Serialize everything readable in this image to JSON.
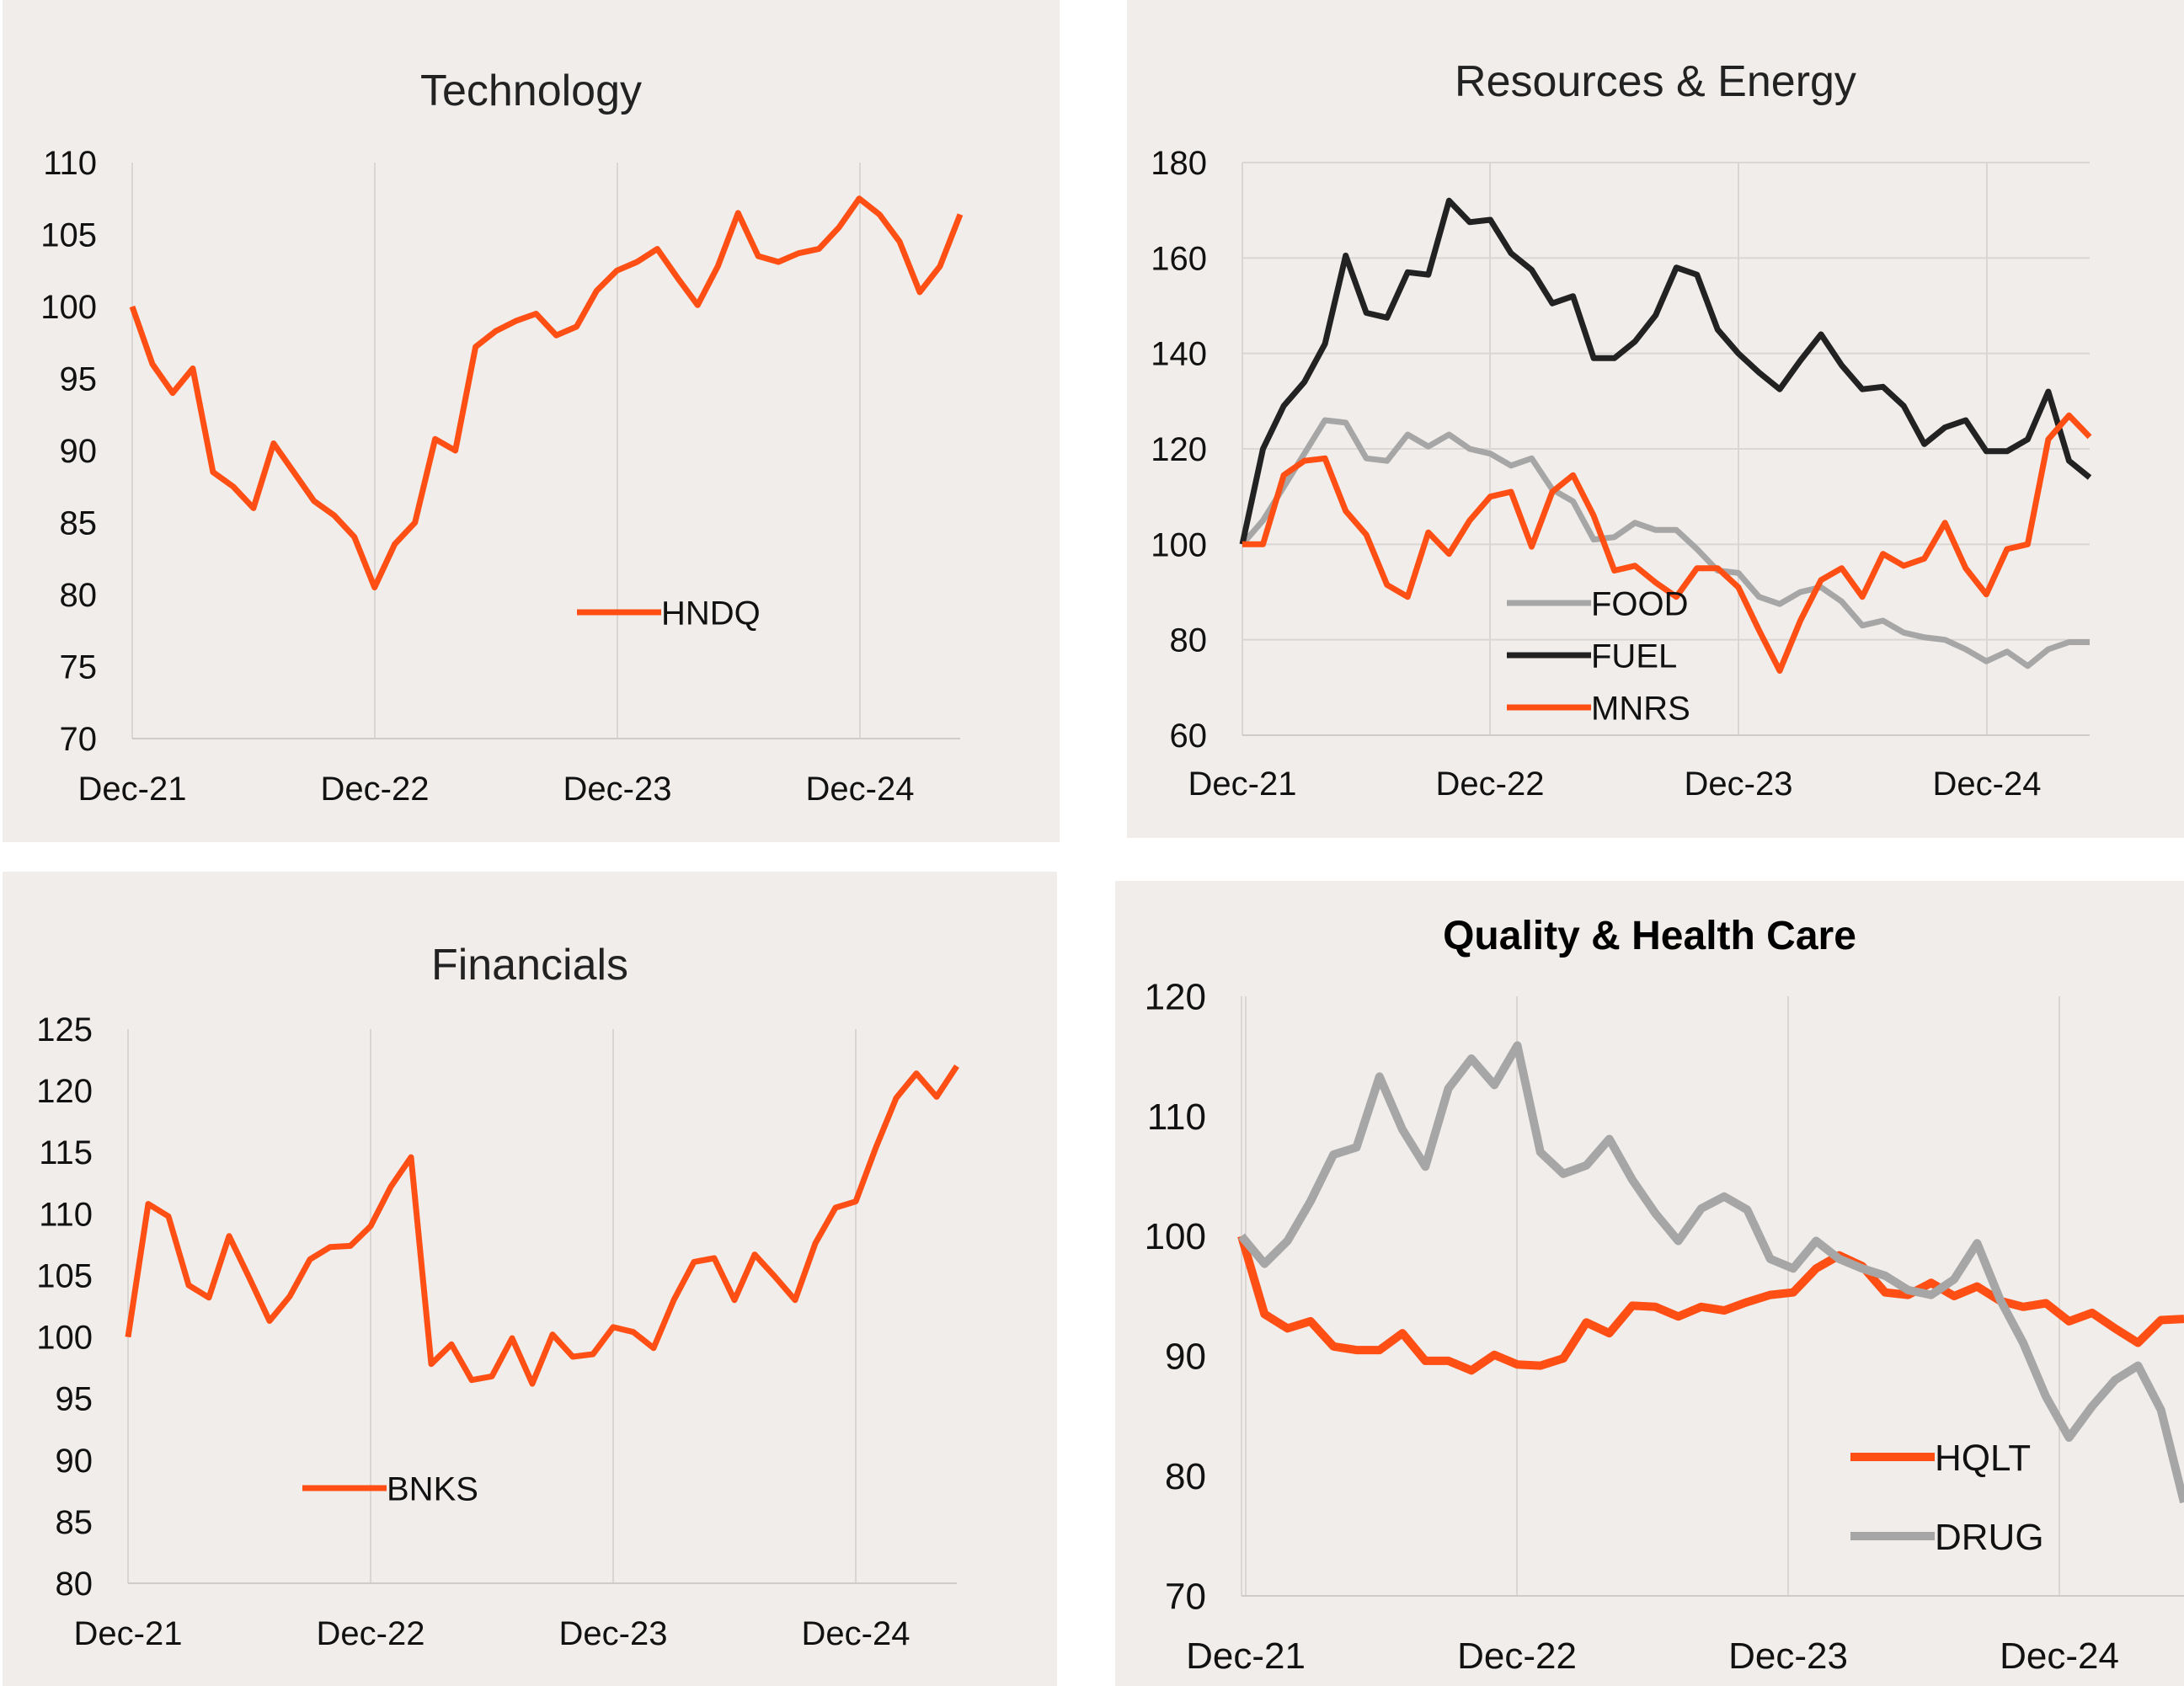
{
  "chart_data": [
    {
      "type": "line",
      "title": "Technology",
      "ylim": [
        70,
        110
      ],
      "yticks": [
        "70",
        "75",
        "80",
        "85",
        "90",
        "95",
        "100",
        "105",
        "110"
      ],
      "xticks": [
        "Dec-21",
        "Dec-22",
        "Dec-23",
        "Dec-24"
      ],
      "grid": "vertical",
      "legend": "center",
      "series": [
        {
          "name": "HNDQ",
          "color": "#ff4f14",
          "values": [
            100,
            96,
            94,
            95.7,
            88.5,
            87.5,
            86,
            90.5,
            88.5,
            86.5,
            85.5,
            84,
            80.5,
            83.5,
            85,
            90.8,
            90,
            97.2,
            98.3,
            99,
            99.5,
            98,
            98.6,
            101.1,
            102.5,
            103.1,
            104,
            102,
            100.1,
            102.8,
            106.5,
            103.5,
            103.1,
            103.7,
            104,
            105.5,
            107.5,
            106.4,
            104.5,
            101,
            102.8,
            106.4
          ]
        }
      ]
    },
    {
      "type": "line",
      "title": "Resources & Energy",
      "ylim": [
        60,
        180
      ],
      "yticks": [
        "60",
        "80",
        "100",
        "120",
        "140",
        "160",
        "180"
      ],
      "xticks": [
        "Dec-21",
        "Dec-22",
        "Dec-23",
        "Dec-24"
      ],
      "grid": "both",
      "legend": "bottom-center",
      "series": [
        {
          "name": "FOOD",
          "color": "#a6a6a6",
          "values": [
            100,
            105,
            112,
            119,
            126,
            125.5,
            118,
            117.5,
            123,
            120.5,
            123,
            120,
            119,
            116.5,
            118,
            111.5,
            109,
            101,
            101.5,
            104.5,
            103,
            103,
            99,
            94.5,
            94,
            89,
            87.5,
            90,
            91,
            88,
            83,
            84,
            81.5,
            80.5,
            80,
            78,
            75.5,
            77.5,
            74.5,
            78,
            79.5,
            79.5
          ]
        },
        {
          "name": "FUEL",
          "color": "#222222",
          "values": [
            100,
            120,
            129,
            134,
            142,
            160.5,
            148.5,
            147.5,
            157,
            156.5,
            172,
            167.5,
            168,
            161,
            157.5,
            150.5,
            152,
            139,
            139,
            142.5,
            148,
            158,
            156.5,
            145,
            140,
            136,
            132.5,
            138.5,
            144,
            137.5,
            132.5,
            133,
            129,
            121,
            124.5,
            126,
            119.5,
            119.5,
            122,
            132,
            117.5,
            114
          ]
        },
        {
          "name": "MNRS",
          "color": "#ff4f14",
          "values": [
            100,
            100,
            114.5,
            117.5,
            118,
            107,
            102,
            91.5,
            89,
            102.5,
            98,
            105,
            110,
            111,
            99.5,
            111,
            114.5,
            106,
            94.5,
            95.5,
            92,
            89,
            95,
            95,
            91,
            82,
            73.5,
            84,
            92.5,
            95,
            89,
            98,
            95.5,
            97,
            104.5,
            95,
            89.5,
            99,
            100,
            122,
            127,
            122.5
          ]
        }
      ]
    },
    {
      "type": "line",
      "title": "Financials",
      "ylim": [
        80,
        125
      ],
      "yticks": [
        "80",
        "85",
        "90",
        "95",
        "100",
        "105",
        "110",
        "115",
        "120",
        "125"
      ],
      "xticks": [
        "Dec-21",
        "Dec-22",
        "Dec-23",
        "Dec-24"
      ],
      "grid": "vertical",
      "legend": "bottom-left",
      "series": [
        {
          "name": "BNKS",
          "color": "#ff4f14",
          "values": [
            100,
            110.8,
            109.8,
            104.2,
            103.2,
            108.2,
            104.8,
            101.3,
            103.3,
            106.3,
            107.3,
            107.4,
            109,
            112.2,
            114.6,
            97.8,
            99.4,
            96.5,
            96.8,
            99.9,
            96.2,
            100.2,
            98.4,
            98.6,
            100.8,
            100.4,
            99.1,
            103,
            106.1,
            106.4,
            103,
            106.7,
            104.9,
            103,
            107.6,
            110.5,
            111,
            115.4,
            119.4,
            121.4,
            119.5,
            122
          ]
        }
      ]
    },
    {
      "type": "line",
      "title": "Quality & Health Care",
      "ylim": [
        70,
        120
      ],
      "yticks": [
        "70",
        "80",
        "90",
        "100",
        "110",
        "120"
      ],
      "xticks": [
        "Dec-21",
        "Dec-22",
        "Dec-23",
        "Dec-24"
      ],
      "grid": "vertical",
      "legend": "bottom-right",
      "series": [
        {
          "name": "HQLT",
          "color": "#ff4f14",
          "values": [
            100,
            93.5,
            92.3,
            92.9,
            90.8,
            90.5,
            90.5,
            91.9,
            89.6,
            89.6,
            88.8,
            90.1,
            89.3,
            89.2,
            89.8,
            92.8,
            91.9,
            94.2,
            94.1,
            93.3,
            94.1,
            93.8,
            94.5,
            95.1,
            95.3,
            97.3,
            98.4,
            97.5,
            95.3,
            95.1,
            96.1,
            95,
            95.8,
            94.6,
            94.1,
            94.4,
            92.9,
            93.6,
            92.3,
            91.1,
            93,
            93.1
          ]
        },
        {
          "name": "DRUG",
          "color": "#a6a6a6",
          "values": [
            100,
            97.7,
            99.6,
            102.9,
            106.8,
            107.4,
            113.3,
            108.9,
            105.8,
            112.3,
            114.8,
            112.6,
            115.9,
            107,
            105.2,
            105.9,
            108.1,
            104.7,
            101.9,
            99.6,
            102.3,
            103.3,
            102.2,
            98.1,
            97.3,
            99.6,
            98.1,
            97.3,
            96.7,
            95.5,
            95.1,
            96.4,
            99.4,
            94.7,
            91.1,
            86.6,
            83.2,
            85.8,
            88,
            89.2,
            85.5,
            77.8
          ]
        }
      ]
    }
  ]
}
